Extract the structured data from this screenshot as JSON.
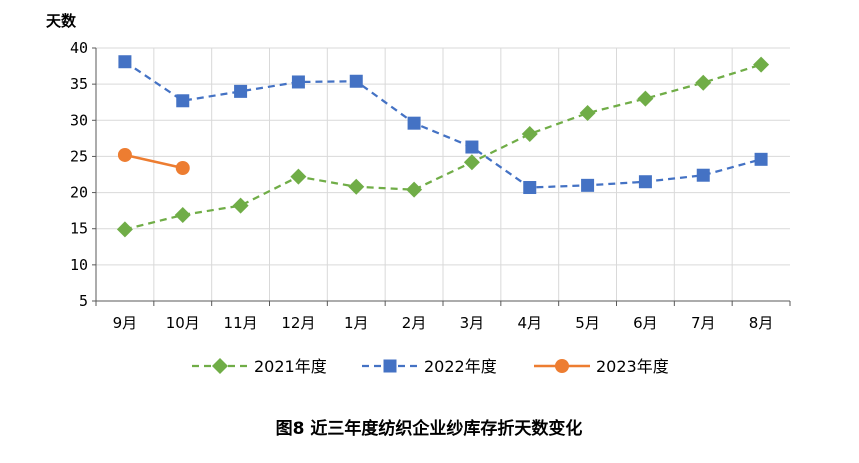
{
  "chart_data": {
    "type": "line",
    "title": "图8  近三年度纺织企业纱库存折天数变化",
    "ylabel": "天数",
    "xlabel": "",
    "categories": [
      "9月",
      "10月",
      "11月",
      "12月",
      "1月",
      "2月",
      "3月",
      "4月",
      "5月",
      "6月",
      "7月",
      "8月"
    ],
    "ylim": [
      5,
      40
    ],
    "yticks": [
      5,
      10,
      15,
      20,
      25,
      30,
      35,
      40
    ],
    "grid": true,
    "legend_position": "bottom",
    "series": [
      {
        "name": "2021年度",
        "color": "#70AD47",
        "marker": "diamond",
        "line": "dashed",
        "values": [
          14.9,
          16.9,
          18.2,
          22.2,
          20.8,
          20.4,
          24.2,
          28.1,
          31.0,
          33.0,
          35.2,
          37.7
        ]
      },
      {
        "name": "2022年度",
        "color": "#4472C4",
        "marker": "square",
        "line": "dashed",
        "values": [
          38.1,
          32.7,
          34.0,
          35.3,
          35.4,
          29.6,
          26.3,
          20.7,
          21.0,
          21.5,
          22.4,
          24.6
        ]
      },
      {
        "name": "2023年度",
        "color": "#ED7D31",
        "marker": "circle",
        "line": "solid",
        "values": [
          25.2,
          23.4,
          null,
          null,
          null,
          null,
          null,
          null,
          null,
          null,
          null,
          null
        ]
      }
    ]
  }
}
